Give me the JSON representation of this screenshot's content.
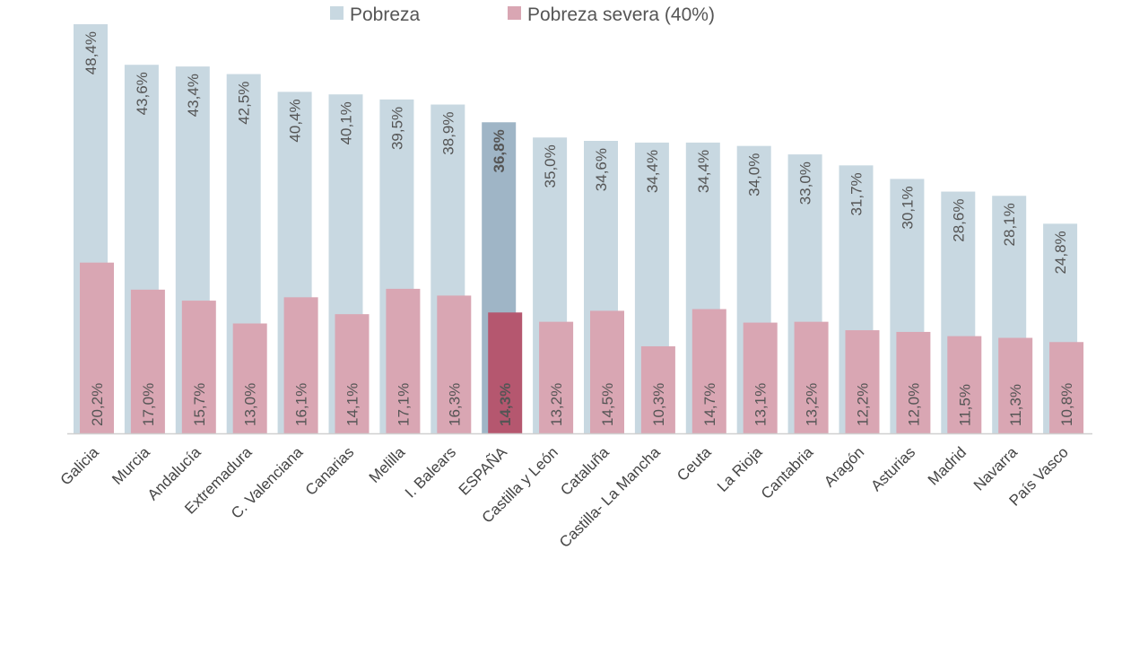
{
  "chart_data": {
    "type": "bar",
    "legend_position": "top",
    "grid": false,
    "ylim": [
      0,
      48.4
    ],
    "categories": [
      "Galicia",
      "Murcia",
      "Andalucía",
      "Extremadura",
      "C. Valenciana",
      "Canarias",
      "Melilla",
      "I. Balears",
      "ESPAÑA",
      "Castilla y León",
      "Cataluña",
      "Castilla- La Mancha",
      "Ceuta",
      "La Rioja",
      "Cantabria",
      "Aragón",
      "Asturias",
      "Madrid",
      "Navarra",
      "País Vasco"
    ],
    "highlight_category": "ESPAÑA",
    "series": [
      {
        "name": "Pobreza",
        "color": "#c8d8e1",
        "highlight_color": "#9fb5c6",
        "values": [
          48.4,
          43.6,
          43.4,
          42.5,
          40.4,
          40.1,
          39.5,
          38.9,
          36.8,
          35.0,
          34.6,
          34.4,
          34.4,
          34.0,
          33.0,
          31.7,
          30.1,
          28.6,
          28.1,
          24.8
        ],
        "labels": [
          "48,4%",
          "43,6%",
          "43,4%",
          "42,5%",
          "40,4%",
          "40,1%",
          "39,5%",
          "38,9%",
          "36,8%",
          "35,0%",
          "34,6%",
          "34,4%",
          "34,4%",
          "34,0%",
          "33,0%",
          "31,7%",
          "30,1%",
          "28,6%",
          "28,1%",
          "24,8%"
        ]
      },
      {
        "name": "Pobreza severa (40%)",
        "color": "#d9a6b3",
        "highlight_color": "#b5576f",
        "values": [
          20.2,
          17.0,
          15.7,
          13.0,
          16.1,
          14.1,
          17.1,
          16.3,
          14.3,
          13.2,
          14.5,
          10.3,
          14.7,
          13.1,
          13.2,
          12.2,
          12.0,
          11.5,
          11.3,
          10.8
        ],
        "labels": [
          "20,2%",
          "17,0%",
          "15,7%",
          "13,0%",
          "16,1%",
          "14,1%",
          "17,1%",
          "16,3%",
          "14,3%",
          "13,2%",
          "14,5%",
          "10,3%",
          "14,7%",
          "13,1%",
          "13,2%",
          "12,2%",
          "12,0%",
          "11,5%",
          "11,3%",
          "10,8%"
        ]
      }
    ]
  }
}
